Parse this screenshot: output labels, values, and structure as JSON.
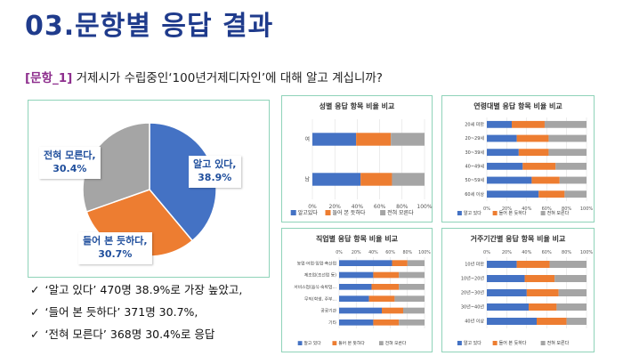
{
  "page": {
    "title": "03.문항별 응답 결과",
    "question_tag": "[문항_1]",
    "question_text": " 거제시가 수립중인‘100년거제디자인’에 대해 알고 계십니까?"
  },
  "colors": {
    "know": "#4472c4",
    "heard": "#ed7d31",
    "none": "#a5a5a5"
  },
  "pie_callouts": {
    "know": {
      "label": "알고 있다,",
      "pct": "38.9%"
    },
    "heard": {
      "label": "들어 본 듯하다,",
      "pct": "30.7%"
    },
    "none": {
      "label": "전혀 모른다,",
      "pct": "30.4%"
    }
  },
  "bullets": [
    "‘알고 있다’ 470명 38.9%로 가장 높았고,",
    "‘들어 본 듯하다’ 371명 30.7%,",
    "‘전혀 모른다’ 368명 30.4%로 응답"
  ],
  "chart_data": [
    {
      "type": "pie",
      "categories": [
        "알고 있다",
        "들어 본 듯하다",
        "전혀 모른다"
      ],
      "values": [
        38.9,
        30.7,
        30.4
      ]
    },
    {
      "type": "bar",
      "title": "성별 응답 항목 비율 비교",
      "categories": [
        "여",
        "남"
      ],
      "series": [
        {
          "name": "알고있다",
          "values": [
            39,
            43
          ]
        },
        {
          "name": "들어 본 듯하다",
          "values": [
            31,
            28
          ]
        },
        {
          "name": "전혀 모른다",
          "values": [
            30,
            29
          ]
        }
      ],
      "xticks": [
        "0%",
        "20%",
        "40%",
        "60%",
        "80%",
        "100%"
      ]
    },
    {
      "type": "bar",
      "title": "연령대별 응답 항목 비율 비교",
      "categories": [
        "20세 미만",
        "20~29세",
        "30~39세",
        "40~49세",
        "50~59세",
        "60세 이상"
      ],
      "series": [
        {
          "name": "알고 있다",
          "values": [
            25,
            30,
            32,
            36,
            45,
            52
          ]
        },
        {
          "name": "들어 본 듯하다",
          "values": [
            33,
            32,
            30,
            33,
            28,
            26
          ]
        },
        {
          "name": "전혀 모른다",
          "values": [
            42,
            38,
            38,
            31,
            27,
            22
          ]
        }
      ],
      "xticks": [
        "0%",
        "20%",
        "40%",
        "60%",
        "80%",
        "100%"
      ]
    },
    {
      "type": "bar",
      "title": "직업별 응답 항목 비율 비교",
      "categories": [
        "농업·어업·임업·축산업",
        "제조업(조선업 등)",
        "서비스업(음식·숙박업...",
        "무직(학생, 주부...",
        "공공기관",
        "기타"
      ],
      "series": [
        {
          "name": "알고 있다",
          "values": [
            62,
            40,
            38,
            35,
            50,
            40
          ]
        },
        {
          "name": "들어 본 듯하다",
          "values": [
            18,
            30,
            32,
            30,
            25,
            30
          ]
        },
        {
          "name": "전혀 모른다",
          "values": [
            20,
            30,
            30,
            35,
            25,
            30
          ]
        }
      ],
      "xticks": [
        "0%",
        "20%",
        "40%",
        "60%",
        "80%",
        "100%"
      ]
    },
    {
      "type": "bar",
      "title": "거주기간별 응답 항목 비율 비교",
      "categories": [
        "10년 미만",
        "10년~20년",
        "20년~30년",
        "30년~40년",
        "40년 이상"
      ],
      "series": [
        {
          "name": "알고 있다",
          "values": [
            30,
            38,
            40,
            42,
            50
          ]
        },
        {
          "name": "들어 본 듯하다",
          "values": [
            33,
            30,
            32,
            28,
            30
          ]
        },
        {
          "name": "전혀 모른다",
          "values": [
            37,
            32,
            28,
            30,
            20
          ]
        }
      ],
      "xticks": [
        "0%",
        "20%",
        "40%",
        "60%",
        "80%",
        "100%"
      ]
    }
  ]
}
